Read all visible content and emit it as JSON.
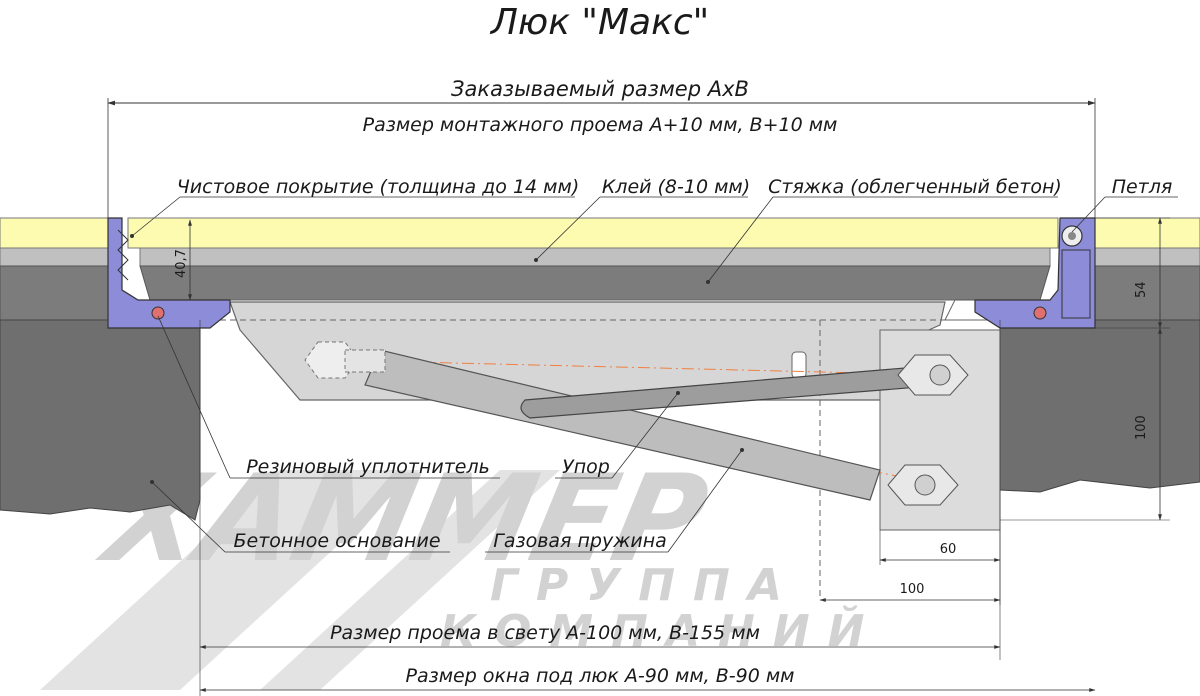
{
  "title": "Люк \"Макс\"",
  "top_dims": {
    "ordered": "Заказываемый размер АхВ",
    "opening": "Размер монтажного проема А+10 мм, В+10 мм"
  },
  "labels": {
    "finish": "Чистовое покрытие (толщина до 14 мм)",
    "glue": "Клей (8-10 мм)",
    "screed": "Стяжка (облегченный бетон)",
    "hinge": "Петля",
    "seal": "Резиновый уплотнитель",
    "stop": "Упор",
    "base": "Бетонное основание",
    "spring": "Газовая пружина"
  },
  "bottom_dims": {
    "clear": "Размер проема в свету А-100 мм, В-155 мм",
    "window": "Размер окна под люк А-90 мм, В-90 мм"
  },
  "dimensions": {
    "thickness": "40,7",
    "right_top": "54",
    "right_mid": "100",
    "bottom_60": "60",
    "bottom_100": "100"
  },
  "watermark": {
    "brand": "ХАММЕР",
    "line1": "ГРУППА",
    "line2": "КОМПАНИЙ"
  },
  "colors": {
    "finish_layer": "#fdfbb0",
    "glue_layer": "#c0c0c0",
    "screed_layer": "#808080",
    "concrete": "#6f6f6f",
    "profile": "#8c8cd8",
    "seal": "#e07070",
    "lid": "#d8d8d8",
    "axis": "#f08040"
  }
}
